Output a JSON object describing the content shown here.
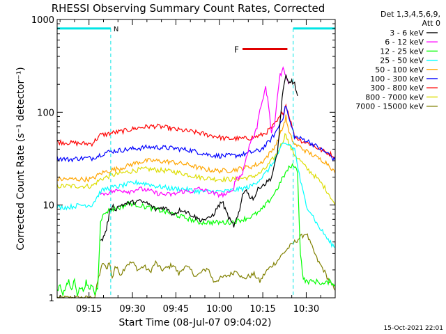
{
  "chart_data": {
    "type": "line",
    "title": "RHESSI Observing Summary Count Rates, Corrected",
    "xlabel": "Start Time (08-Jul-07 09:04:02)",
    "ylabel": "Corrected Count Rate (s⁻¹ detector⁻¹)",
    "yscale": "log",
    "ylim": [
      1,
      1000
    ],
    "xlim_minutes": [
      0,
      96
    ],
    "x_ticks": [
      {
        "label": "09:15",
        "min": 11
      },
      {
        "label": "09:30",
        "min": 26
      },
      {
        "label": "09:45",
        "min": 41
      },
      {
        "label": "10:00",
        "min": 56
      },
      {
        "label": "10:15",
        "min": 71
      },
      {
        "label": "10:30",
        "min": 86
      }
    ],
    "y_ticks": [
      {
        "label": "1",
        "v": 1
      },
      {
        "label": "10",
        "v": 10
      },
      {
        "label": "100",
        "v": 100
      },
      {
        "label": "1000",
        "v": 1000
      }
    ],
    "legend_header": [
      "Det 1,3,4,5,6,9,",
      "Att 0"
    ],
    "legend_position": "right",
    "annotations": {
      "night_label": "N",
      "flare_label": "F",
      "night": [
        {
          "from": 0,
          "to": 18.5
        },
        {
          "from": 81.5,
          "to": 96
        }
      ],
      "flare": {
        "from": 64,
        "to": 79.5
      },
      "night_y": 800,
      "flare_y": 480
    },
    "timestamp": "15-Oct-2021 22:01",
    "series": [
      {
        "name": "3 - 6 keV",
        "color": "#000000",
        "x": [
          15,
          16,
          17,
          18,
          19,
          20,
          22,
          25,
          28,
          31,
          34,
          37,
          40,
          43,
          46,
          49,
          52,
          54,
          56,
          57,
          58,
          60,
          61,
          62,
          63,
          64,
          65,
          66,
          67,
          68,
          69,
          70,
          72,
          74,
          76,
          77,
          78,
          79,
          80,
          81,
          82,
          83
        ],
        "y": [
          4,
          4.5,
          5.5,
          8,
          10,
          9,
          10,
          10.5,
          11,
          10.5,
          9,
          9.5,
          8,
          9,
          8,
          7,
          7,
          8,
          10,
          11,
          9,
          6.5,
          6,
          7,
          8.5,
          13,
          15,
          13,
          12,
          12,
          14,
          16,
          17,
          20,
          35,
          80,
          180,
          240,
          200,
          220,
          200,
          150
        ]
      },
      {
        "name": "6 - 12 keV",
        "color": "#ff00ff",
        "x": [
          15,
          17,
          19,
          22,
          25,
          28,
          31,
          34,
          37,
          40,
          43,
          46,
          49,
          52,
          55,
          58,
          60,
          61,
          62,
          63,
          64,
          65,
          66,
          67,
          68,
          69,
          70,
          72,
          73,
          74,
          75,
          76,
          77,
          78,
          79,
          80
        ],
        "y": [
          13,
          13.5,
          14,
          14.5,
          14,
          15,
          14.5,
          13.5,
          13,
          13,
          14,
          14,
          15,
          14,
          13,
          13,
          13.5,
          16,
          20,
          20,
          22,
          30,
          40,
          50,
          55,
          70,
          110,
          180,
          120,
          60,
          70,
          150,
          250,
          290,
          260,
          200
        ]
      },
      {
        "name": "12 - 25 keV",
        "color": "#00ff00",
        "x": [
          0,
          1,
          2,
          3,
          4,
          5,
          6,
          7,
          8,
          9,
          10,
          11,
          12,
          13,
          14,
          15,
          17,
          19,
          22,
          25,
          28,
          31,
          34,
          37,
          40,
          43,
          46,
          49,
          52,
          55,
          58,
          61,
          64,
          67,
          70,
          72,
          74,
          76,
          78,
          80,
          82,
          83,
          84,
          85,
          86,
          88,
          90,
          92,
          94,
          96
        ],
        "y": [
          1.2,
          1.4,
          1.1,
          1.3,
          1.5,
          1.2,
          1.6,
          1.1,
          1.3,
          1.2,
          1.5,
          1.2,
          1.4,
          1.1,
          1.3,
          7,
          8.5,
          9,
          9.5,
          10.5,
          10,
          9.5,
          9,
          8.5,
          8,
          7.5,
          7,
          6.5,
          6.5,
          6.5,
          6.5,
          6.6,
          7,
          7.5,
          8.5,
          10,
          12,
          15,
          20,
          25,
          27,
          22,
          3,
          1.6,
          1.5,
          1.5,
          1.5,
          1.4,
          1.5,
          1.4
        ]
      },
      {
        "name": "25 - 50 keV",
        "color": "#00ffff",
        "x": [
          0,
          4,
          8,
          12,
          15,
          17,
          19,
          22,
          25,
          28,
          31,
          34,
          37,
          40,
          43,
          46,
          49,
          52,
          55,
          58,
          61,
          64,
          67,
          70,
          72,
          74,
          76,
          78,
          80,
          82,
          84,
          86,
          88,
          90,
          92,
          94,
          96
        ],
        "y": [
          9.5,
          9.5,
          10,
          10,
          14,
          15,
          15.5,
          16,
          17,
          17.5,
          17,
          16,
          15.5,
          15,
          15,
          14.5,
          14,
          14,
          14,
          14,
          14.5,
          15,
          16,
          19,
          22,
          27,
          35,
          45,
          45,
          40,
          18,
          10,
          8,
          6,
          5,
          4,
          3.5
        ]
      },
      {
        "name": "50 - 100 keV",
        "color": "#ffa500",
        "x": [
          0,
          4,
          8,
          12,
          15,
          17,
          19,
          22,
          25,
          28,
          31,
          34,
          37,
          40,
          43,
          46,
          49,
          52,
          55,
          58,
          61,
          64,
          67,
          70,
          72,
          74,
          76,
          78,
          79,
          80,
          82,
          84,
          86,
          88,
          90,
          92,
          94,
          96
        ],
        "y": [
          19,
          19,
          19,
          19,
          22,
          23,
          24,
          25,
          27,
          29,
          30,
          30,
          29.5,
          29,
          28,
          27,
          25,
          24,
          23.5,
          23.5,
          24,
          25,
          26,
          28,
          32,
          38,
          48,
          70,
          90,
          60,
          45,
          42,
          38,
          35,
          32,
          30,
          27,
          22
        ]
      },
      {
        "name": "100 - 300 keV",
        "color": "#0000ff",
        "x": [
          0,
          4,
          8,
          12,
          15,
          17,
          19,
          22,
          25,
          28,
          31,
          34,
          37,
          40,
          43,
          46,
          49,
          52,
          55,
          58,
          61,
          64,
          67,
          70,
          72,
          74,
          76,
          78,
          79,
          80,
          82,
          84,
          86,
          88,
          90,
          92,
          94,
          96
        ],
        "y": [
          32,
          31,
          32,
          32,
          35,
          37,
          38,
          39,
          40,
          41,
          42,
          42,
          41.5,
          41,
          40,
          39,
          37,
          35,
          34,
          34,
          34,
          35,
          37,
          39,
          44,
          52,
          65,
          90,
          120,
          85,
          55,
          52,
          50,
          46,
          42,
          38,
          35,
          30
        ]
      },
      {
        "name": "300 - 800 keV",
        "color": "#ff0000",
        "x": [
          0,
          4,
          8,
          12,
          15,
          17,
          19,
          22,
          25,
          28,
          31,
          34,
          37,
          40,
          43,
          46,
          49,
          52,
          55,
          58,
          61,
          64,
          67,
          70,
          72,
          74,
          76,
          78,
          79,
          80,
          82,
          84,
          86,
          88,
          90,
          92,
          94,
          96
        ],
        "y": [
          48,
          47,
          46,
          46,
          57,
          58,
          60,
          62,
          65,
          68,
          70,
          71,
          69,
          66,
          64,
          62,
          60,
          57,
          55,
          52,
          52,
          52,
          53,
          56,
          60,
          68,
          80,
          100,
          120,
          95,
          55,
          50,
          47,
          45,
          41,
          38,
          36,
          33
        ]
      },
      {
        "name": "800 - 7000 keV",
        "color": "#dddd00",
        "x": [
          0,
          4,
          8,
          12,
          15,
          17,
          19,
          22,
          25,
          28,
          31,
          34,
          37,
          40,
          43,
          46,
          49,
          52,
          55,
          58,
          61,
          64,
          67,
          70,
          72,
          74,
          76,
          78,
          79,
          80,
          82,
          84,
          86,
          88,
          90,
          92,
          94,
          96
        ],
        "y": [
          16,
          16,
          16,
          16,
          19,
          20,
          21,
          22,
          23,
          24,
          24.5,
          24,
          23.5,
          23,
          22,
          21,
          20,
          19.5,
          19,
          19,
          19,
          19.5,
          20,
          22,
          25,
          30,
          36,
          50,
          60,
          45,
          35,
          30,
          25,
          22,
          19,
          16,
          13,
          10
        ]
      },
      {
        "name": "7000 - 15000 keV",
        "color": "#808000",
        "x": [
          0,
          8,
          13,
          14,
          15,
          16,
          17,
          18,
          19,
          20,
          22,
          24,
          26,
          28,
          30,
          32,
          34,
          36,
          38,
          40,
          42,
          44,
          46,
          48,
          50,
          52,
          54,
          56,
          58,
          60,
          62,
          64,
          66,
          68,
          70,
          72,
          74,
          76,
          78,
          80,
          82,
          84,
          86,
          88,
          90,
          92,
          94,
          96
        ],
        "y": [
          1,
          1,
          1,
          1.5,
          2,
          2.4,
          2,
          2.5,
          1.6,
          2.2,
          1.8,
          2.3,
          2.4,
          2,
          2.2,
          1.9,
          2.4,
          2,
          2.1,
          2.3,
          1.8,
          2.2,
          2,
          1.7,
          1.9,
          2.1,
          1.5,
          1.6,
          1.7,
          1.8,
          2,
          1.6,
          1.7,
          1.8,
          1.5,
          1.9,
          2.2,
          2.5,
          3,
          3.5,
          4,
          4.5,
          5,
          3.5,
          2.5,
          2,
          1.5,
          1.2
        ]
      }
    ]
  }
}
